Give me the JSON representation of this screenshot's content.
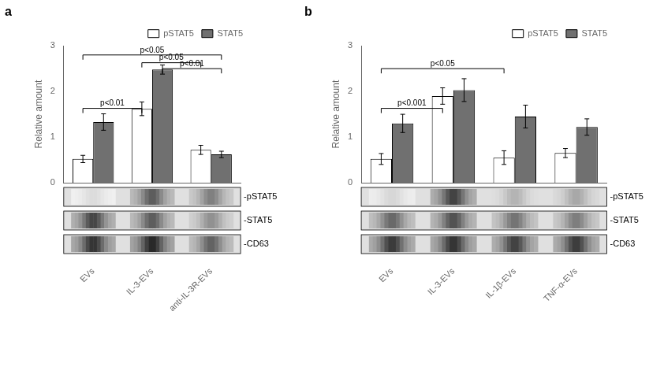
{
  "chart_data": [
    {
      "type": "bar",
      "title": "a",
      "categories": [
        "EVs",
        "IL-3-EVs",
        "anti-IL-3R-EVs"
      ],
      "series": [
        {
          "name": "pSTAT5",
          "color": "white",
          "values": [
            0.52,
            1.62,
            0.72
          ],
          "errors": [
            0.08,
            0.15,
            0.1
          ]
        },
        {
          "name": "STAT5",
          "color": "#707070",
          "values": [
            1.33,
            2.48,
            0.62
          ],
          "errors": [
            0.18,
            0.1,
            0.07
          ]
        }
      ],
      "ylabel": "Relative amount",
      "ylim": [
        0,
        3.0
      ],
      "yticks": [
        0,
        1,
        2,
        3
      ],
      "grid": false,
      "legend": "upper right",
      "annotations": [
        {
          "text": "p<0.01",
          "from": [
            "EVs",
            "pSTAT5"
          ],
          "to": [
            "IL-3-EVs",
            "pSTAT5"
          ],
          "y": 1.63
        },
        {
          "text": "p<0.05",
          "from": [
            "IL-3-EVs",
            "pSTAT5"
          ],
          "to": [
            "anti-IL-3R-EVs",
            "pSTAT5"
          ],
          "y": 2.63
        },
        {
          "text": "p<0.01",
          "from": [
            "IL-3-EVs",
            "STAT5"
          ],
          "to": [
            "anti-IL-3R-EVs",
            "STAT5"
          ],
          "y": 2.5
        },
        {
          "text": "p<0.05",
          "from": [
            "EVs",
            "pSTAT5"
          ],
          "to": [
            "anti-IL-3R-EVs",
            "STAT5"
          ],
          "y": 2.8
        }
      ],
      "blots": [
        {
          "label": "-pSTAT5",
          "intensities": [
            0.15,
            0.7,
            0.55
          ]
        },
        {
          "label": "-STAT5",
          "intensities": [
            0.8,
            0.7,
            0.475
          ]
        },
        {
          "label": "-CD63",
          "intensities": [
            0.875,
            0.925,
            0.675
          ]
        }
      ]
    },
    {
      "type": "bar",
      "title": "b",
      "categories": [
        "EVs",
        "IL-3-EVs",
        "IL-1β-EVs",
        "TNF-α-EVs"
      ],
      "series": [
        {
          "name": "pSTAT5",
          "color": "white",
          "values": [
            0.52,
            1.9,
            0.55,
            0.65
          ],
          "errors": [
            0.12,
            0.18,
            0.15,
            0.1
          ]
        },
        {
          "name": "STAT5",
          "color": "#707070",
          "values": [
            1.3,
            2.03,
            1.45,
            1.22
          ],
          "errors": [
            0.2,
            0.25,
            0.25,
            0.18
          ]
        }
      ],
      "ylabel": "Relative amount",
      "ylim": [
        0,
        3.0
      ],
      "yticks": [
        0,
        1,
        2,
        3
      ],
      "grid": false,
      "legend": "upper right",
      "annotations": [
        {
          "text": "p<0.001",
          "from": [
            "EVs",
            "pSTAT5"
          ],
          "to": [
            "IL-3-EVs",
            "pSTAT5"
          ],
          "y": 1.63
        },
        {
          "text": "p<0.05",
          "from": [
            "EVs",
            "pSTAT5"
          ],
          "to": [
            "IL-1β-EVs",
            "pSTAT5"
          ],
          "y": 2.5
        }
      ],
      "blots": [
        {
          "label": "-pSTAT5",
          "intensities": [
            0.175,
            0.815,
            0.325,
            0.375
          ]
        },
        {
          "label": "-STAT5",
          "intensities": [
            0.65,
            0.75,
            0.6,
            0.56
          ]
        },
        {
          "label": "-CD63",
          "intensities": [
            0.85,
            0.875,
            0.815,
            0.84
          ]
        }
      ]
    }
  ]
}
